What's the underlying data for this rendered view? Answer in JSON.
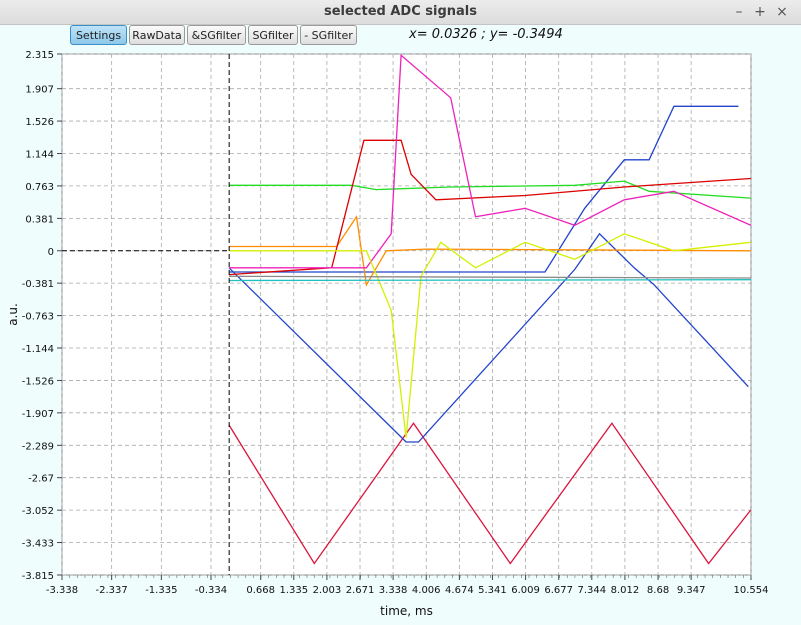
{
  "window": {
    "title": "selected ADC signals",
    "minimize": "–",
    "maximize": "+",
    "close": "×"
  },
  "toolbar": {
    "buttons": [
      "Settings",
      "RawData",
      "&SGfilter",
      "SGfilter",
      "- SGfilter"
    ]
  },
  "cursor_readout": "x= 0.0326 ; y= -0.3494",
  "chart_data": {
    "type": "line",
    "xlabel": "time, ms",
    "ylabel": "a.u.",
    "xlim": [
      -3.338,
      10.554
    ],
    "ylim": [
      -3.815,
      2.315
    ],
    "x_ticks": [
      "-3.338",
      "-2.337",
      "-1.335",
      "-0.334",
      "0.668",
      "1.335",
      "2.003",
      "2.671",
      "3.338",
      "4.006",
      "4.674",
      "5.341",
      "6.009",
      "6.677",
      "7.344",
      "8.012",
      "8.68",
      "9.347",
      "10.554"
    ],
    "y_ticks": [
      "2.315",
      "1.907",
      "1.526",
      "1.144",
      "0.763",
      "0.381",
      "0",
      "-0.381",
      "-0.763",
      "-1.144",
      "-1.526",
      "-1.907",
      "-2.289",
      "-2.67",
      "-3.052",
      "-3.433",
      "-3.815"
    ],
    "grid": true,
    "cursor": {
      "x": 0.0326,
      "y": 0
    },
    "series": [
      {
        "color": "#dc143c",
        "x": [
          0.03,
          1.75,
          3.75,
          5.7,
          7.75,
          9.7,
          10.55
        ],
        "y": [
          -2.05,
          -3.68,
          -2.03,
          -3.68,
          -2.03,
          -3.68,
          -3.05
        ]
      },
      {
        "color": "#2244cc",
        "x": [
          0.03,
          3.6,
          3.85,
          7.0,
          7.5,
          8.2,
          8.6,
          10.5
        ],
        "y": [
          -0.2,
          -2.25,
          -2.25,
          -0.22,
          0.2,
          -0.2,
          -0.4,
          -1.6
        ]
      },
      {
        "color": "#2244cc",
        "x": [
          0.03,
          6.4,
          7.2,
          8.0,
          8.5,
          9.0,
          10.3
        ],
        "y": [
          -0.25,
          -0.25,
          0.5,
          1.07,
          1.07,
          1.7,
          1.7
        ]
      },
      {
        "color": "#22dd22",
        "x": [
          0.03,
          2.5,
          3.0,
          4.5,
          7.0,
          8.0,
          8.5,
          10.55
        ],
        "y": [
          0.77,
          0.77,
          0.72,
          0.75,
          0.77,
          0.82,
          0.7,
          0.62
        ]
      },
      {
        "color": "#ff8c00",
        "x": [
          0.03,
          2.2,
          2.6,
          2.8,
          3.2,
          4.0,
          10.55
        ],
        "y": [
          0.05,
          0.05,
          0.4,
          -0.4,
          0.0,
          0.02,
          0.0
        ]
      },
      {
        "color": "#dd0000",
        "x": [
          0.03,
          2.1,
          2.75,
          3.5,
          3.7,
          4.2,
          6.0,
          8.0,
          10.55
        ],
        "y": [
          -0.28,
          -0.2,
          1.3,
          1.3,
          0.9,
          0.6,
          0.65,
          0.75,
          0.85
        ]
      },
      {
        "color": "#ee22bb",
        "x": [
          0.03,
          2.8,
          3.3,
          3.5,
          4.5,
          5.0,
          6.0,
          7.0,
          8.0,
          9.0,
          10.55
        ],
        "y": [
          -0.2,
          -0.2,
          0.2,
          2.3,
          1.8,
          0.4,
          0.5,
          0.3,
          0.6,
          0.7,
          0.3
        ]
      },
      {
        "color": "#d4f000",
        "x": [
          0.03,
          2.8,
          3.3,
          3.6,
          3.9,
          4.3,
          5.0,
          6.0,
          7.0,
          8.0,
          9.0,
          10.55
        ],
        "y": [
          0.0,
          0.0,
          -0.7,
          -2.2,
          -0.3,
          0.1,
          -0.2,
          0.1,
          -0.1,
          0.2,
          0.0,
          0.1
        ]
      },
      {
        "color": "#8a8a8a",
        "x": [
          0.03,
          10.55
        ],
        "y": [
          -0.3,
          -0.32
        ]
      },
      {
        "color": "#20c0c0",
        "x": [
          0.03,
          10.55
        ],
        "y": [
          -0.35,
          -0.34
        ]
      }
    ]
  }
}
